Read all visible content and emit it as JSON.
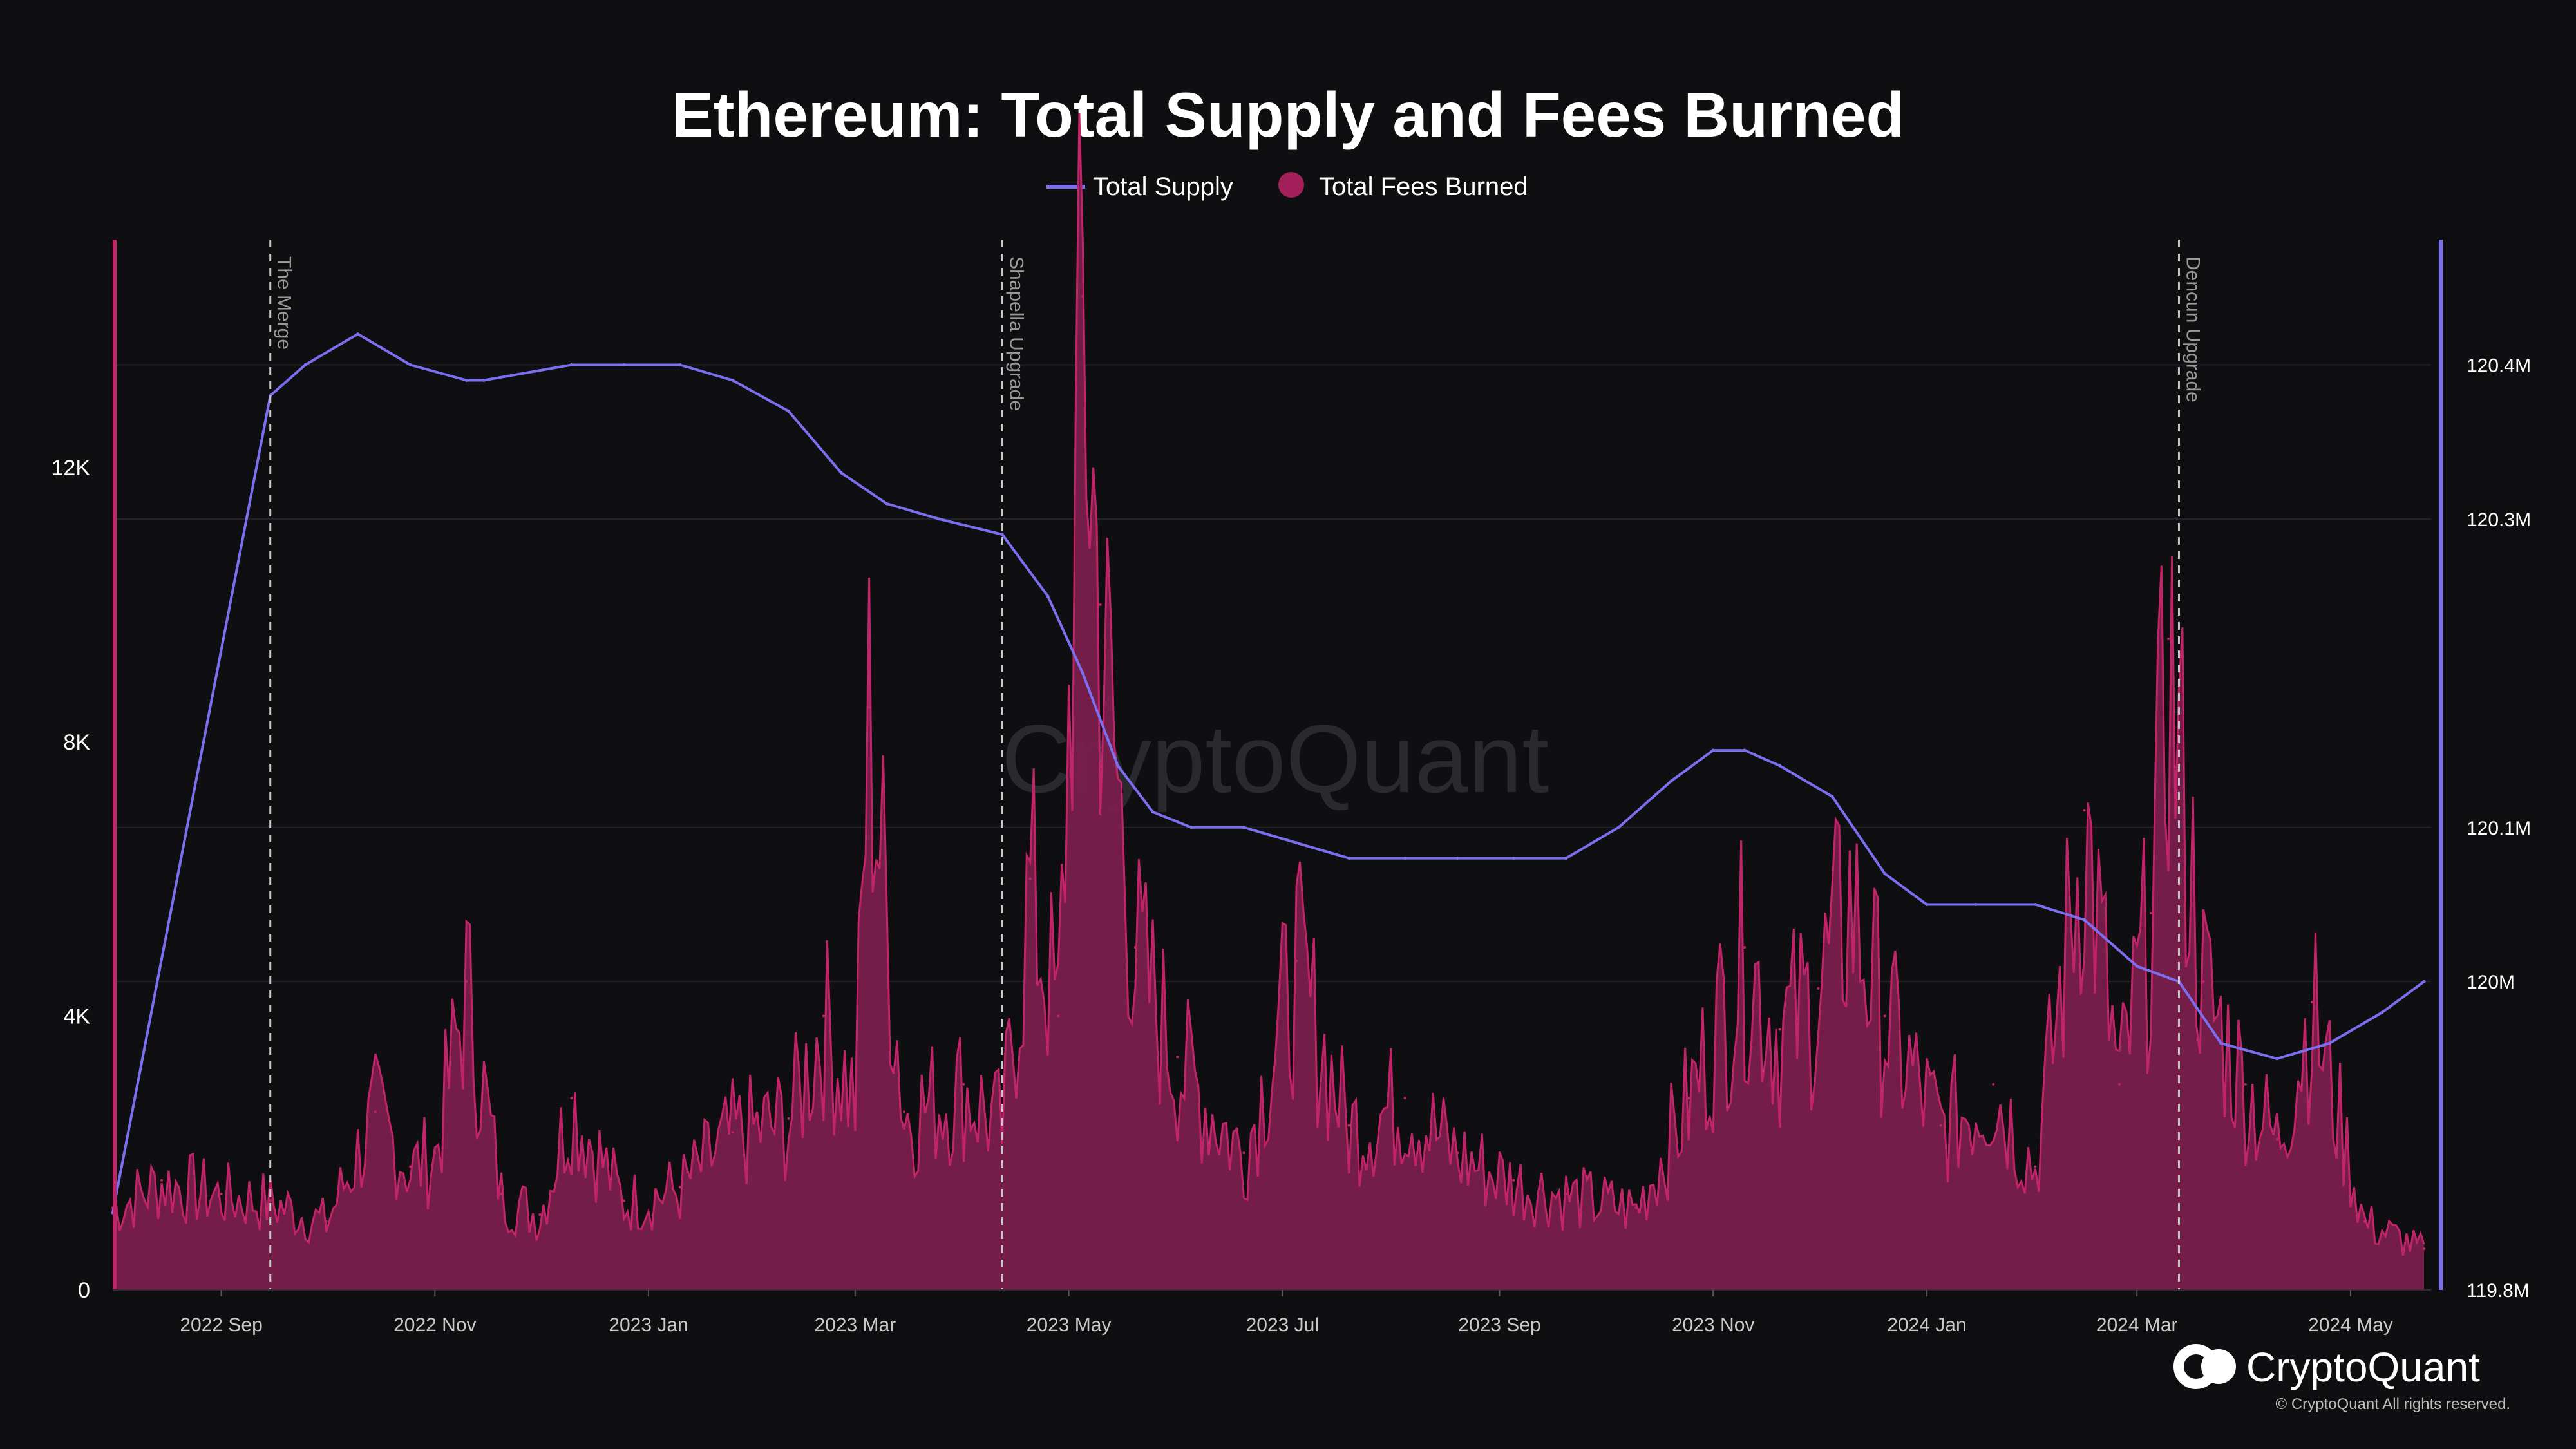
{
  "brand": {
    "name": "CryptoQuant",
    "copyright": "© CryptoQuant All rights reserved.",
    "watermark": "CryptoQuant"
  },
  "colors": {
    "background": "#0f0f11",
    "supply_line": "#7b6ff0",
    "fees_fill": "#7a1f4c",
    "fees_line": "#c2246a",
    "grid": "#222226"
  },
  "chart_data": {
    "type": "line",
    "title": "Ethereum: Total Supply and Fees Burned",
    "legend": [
      "Total Supply",
      "Total Fees Burned"
    ],
    "legend_position": "top-center",
    "grid": true,
    "x_range": [
      "2022-08-01",
      "2024-05-24"
    ],
    "x_ticks": [
      {
        "date": "2022-09-01",
        "label": "2022 Sep"
      },
      {
        "date": "2022-11-01",
        "label": "2022 Nov"
      },
      {
        "date": "2023-01-01",
        "label": "2023 Jan"
      },
      {
        "date": "2023-03-01",
        "label": "2023 Mar"
      },
      {
        "date": "2023-05-01",
        "label": "2023 May"
      },
      {
        "date": "2023-07-01",
        "label": "2023 Jul"
      },
      {
        "date": "2023-09-01",
        "label": "2023 Sep"
      },
      {
        "date": "2023-11-01",
        "label": "2023 Nov"
      },
      {
        "date": "2024-01-01",
        "label": "2024 Jan"
      },
      {
        "date": "2024-03-01",
        "label": "2024 Mar"
      },
      {
        "date": "2024-05-01",
        "label": "2024 May"
      }
    ],
    "y_left": {
      "range": [
        0,
        15300
      ],
      "ticks": [
        {
          "value": 0,
          "label": "0"
        },
        {
          "value": 4000,
          "label": "4K"
        },
        {
          "value": 8000,
          "label": "8K"
        },
        {
          "value": 12000,
          "label": "12K"
        }
      ]
    },
    "y_right": {
      "range": [
        119.8,
        120.48
      ],
      "ticks": [
        {
          "value": 119.8,
          "label": "119.8M"
        },
        {
          "value": 120.0,
          "label": "120M"
        },
        {
          "value": 120.1,
          "label": "120.1M"
        },
        {
          "value": 120.3,
          "label": "120.3M"
        },
        {
          "value": 120.4,
          "label": "120.4M"
        }
      ]
    },
    "events": [
      {
        "date": "2022-09-15",
        "label": "The Merge"
      },
      {
        "date": "2023-04-12",
        "label": "Shapella Upgrade"
      },
      {
        "date": "2024-03-13",
        "label": "Dencun Upgrade"
      }
    ],
    "series": [
      {
        "name": "Total Supply",
        "axis": "right",
        "unit": "M ETH",
        "points": [
          [
            "2022-08-01",
            119.85
          ],
          [
            "2022-09-15",
            120.38
          ],
          [
            "2022-09-25",
            120.4
          ],
          [
            "2022-10-10",
            120.42
          ],
          [
            "2022-10-25",
            120.4
          ],
          [
            "2022-11-10",
            120.39
          ],
          [
            "2022-11-15",
            120.39
          ],
          [
            "2022-12-10",
            120.4
          ],
          [
            "2022-12-25",
            120.4
          ],
          [
            "2023-01-10",
            120.4
          ],
          [
            "2023-01-25",
            120.39
          ],
          [
            "2023-02-10",
            120.37
          ],
          [
            "2023-02-25",
            120.33
          ],
          [
            "2023-03-10",
            120.31
          ],
          [
            "2023-03-25",
            120.3
          ],
          [
            "2023-04-12",
            120.29
          ],
          [
            "2023-04-25",
            120.25
          ],
          [
            "2023-05-05",
            120.2
          ],
          [
            "2023-05-15",
            120.14
          ],
          [
            "2023-05-25",
            120.11
          ],
          [
            "2023-06-05",
            120.1
          ],
          [
            "2023-06-20",
            120.1
          ],
          [
            "2023-07-05",
            120.09
          ],
          [
            "2023-07-20",
            120.08
          ],
          [
            "2023-08-05",
            120.08
          ],
          [
            "2023-08-20",
            120.08
          ],
          [
            "2023-09-05",
            120.08
          ],
          [
            "2023-09-20",
            120.08
          ],
          [
            "2023-10-05",
            120.1
          ],
          [
            "2023-10-20",
            120.13
          ],
          [
            "2023-11-01",
            120.15
          ],
          [
            "2023-11-10",
            120.15
          ],
          [
            "2023-11-20",
            120.14
          ],
          [
            "2023-12-05",
            120.12
          ],
          [
            "2023-12-20",
            120.07
          ],
          [
            "2024-01-01",
            120.05
          ],
          [
            "2024-01-15",
            120.05
          ],
          [
            "2024-02-01",
            120.05
          ],
          [
            "2024-02-15",
            120.04
          ],
          [
            "2024-03-01",
            120.01
          ],
          [
            "2024-03-13",
            120.0
          ],
          [
            "2024-03-25",
            119.96
          ],
          [
            "2024-04-10",
            119.95
          ],
          [
            "2024-04-25",
            119.96
          ],
          [
            "2024-05-10",
            119.98
          ],
          [
            "2024-05-22",
            120.0
          ]
        ]
      },
      {
        "name": "Total Fees Burned",
        "axis": "left",
        "unit": "ETH",
        "points": [
          [
            "2022-08-01",
            1200
          ],
          [
            "2022-08-15",
            1600
          ],
          [
            "2022-09-01",
            1400
          ],
          [
            "2022-09-15",
            1300
          ],
          [
            "2022-10-01",
            1000
          ],
          [
            "2022-10-15",
            2600
          ],
          [
            "2022-10-25",
            1800
          ],
          [
            "2022-11-01",
            2000
          ],
          [
            "2022-11-10",
            4500
          ],
          [
            "2022-11-20",
            1400
          ],
          [
            "2022-12-01",
            1100
          ],
          [
            "2022-12-10",
            2800
          ],
          [
            "2022-12-25",
            1300
          ],
          [
            "2023-01-10",
            1500
          ],
          [
            "2023-01-25",
            2300
          ],
          [
            "2023-02-10",
            2500
          ],
          [
            "2023-02-20",
            4000
          ],
          [
            "2023-03-01",
            2800
          ],
          [
            "2023-03-05",
            8500
          ],
          [
            "2023-03-15",
            2600
          ],
          [
            "2023-04-01",
            3000
          ],
          [
            "2023-04-12",
            2400
          ],
          [
            "2023-04-20",
            6000
          ],
          [
            "2023-04-28",
            4000
          ],
          [
            "2023-05-05",
            14500
          ],
          [
            "2023-05-10",
            10000
          ],
          [
            "2023-05-20",
            5000
          ],
          [
            "2023-06-01",
            3400
          ],
          [
            "2023-06-20",
            2000
          ],
          [
            "2023-07-05",
            4800
          ],
          [
            "2023-07-20",
            2400
          ],
          [
            "2023-08-05",
            2800
          ],
          [
            "2023-08-20",
            2000
          ],
          [
            "2023-09-05",
            1600
          ],
          [
            "2023-09-20",
            1400
          ],
          [
            "2023-10-10",
            1200
          ],
          [
            "2023-10-25",
            2800
          ],
          [
            "2023-11-10",
            5000
          ],
          [
            "2023-11-20",
            3800
          ],
          [
            "2023-12-01",
            4400
          ],
          [
            "2023-12-10",
            5800
          ],
          [
            "2023-12-20",
            4000
          ],
          [
            "2024-01-05",
            2400
          ],
          [
            "2024-01-20",
            3000
          ],
          [
            "2024-02-01",
            1800
          ],
          [
            "2024-02-15",
            7000
          ],
          [
            "2024-02-25",
            3000
          ],
          [
            "2024-03-05",
            5500
          ],
          [
            "2024-03-10",
            9500
          ],
          [
            "2024-03-20",
            4500
          ],
          [
            "2024-04-01",
            3000
          ],
          [
            "2024-04-10",
            2200
          ],
          [
            "2024-04-20",
            4200
          ],
          [
            "2024-05-05",
            1000
          ],
          [
            "2024-05-22",
            600
          ]
        ]
      }
    ]
  }
}
